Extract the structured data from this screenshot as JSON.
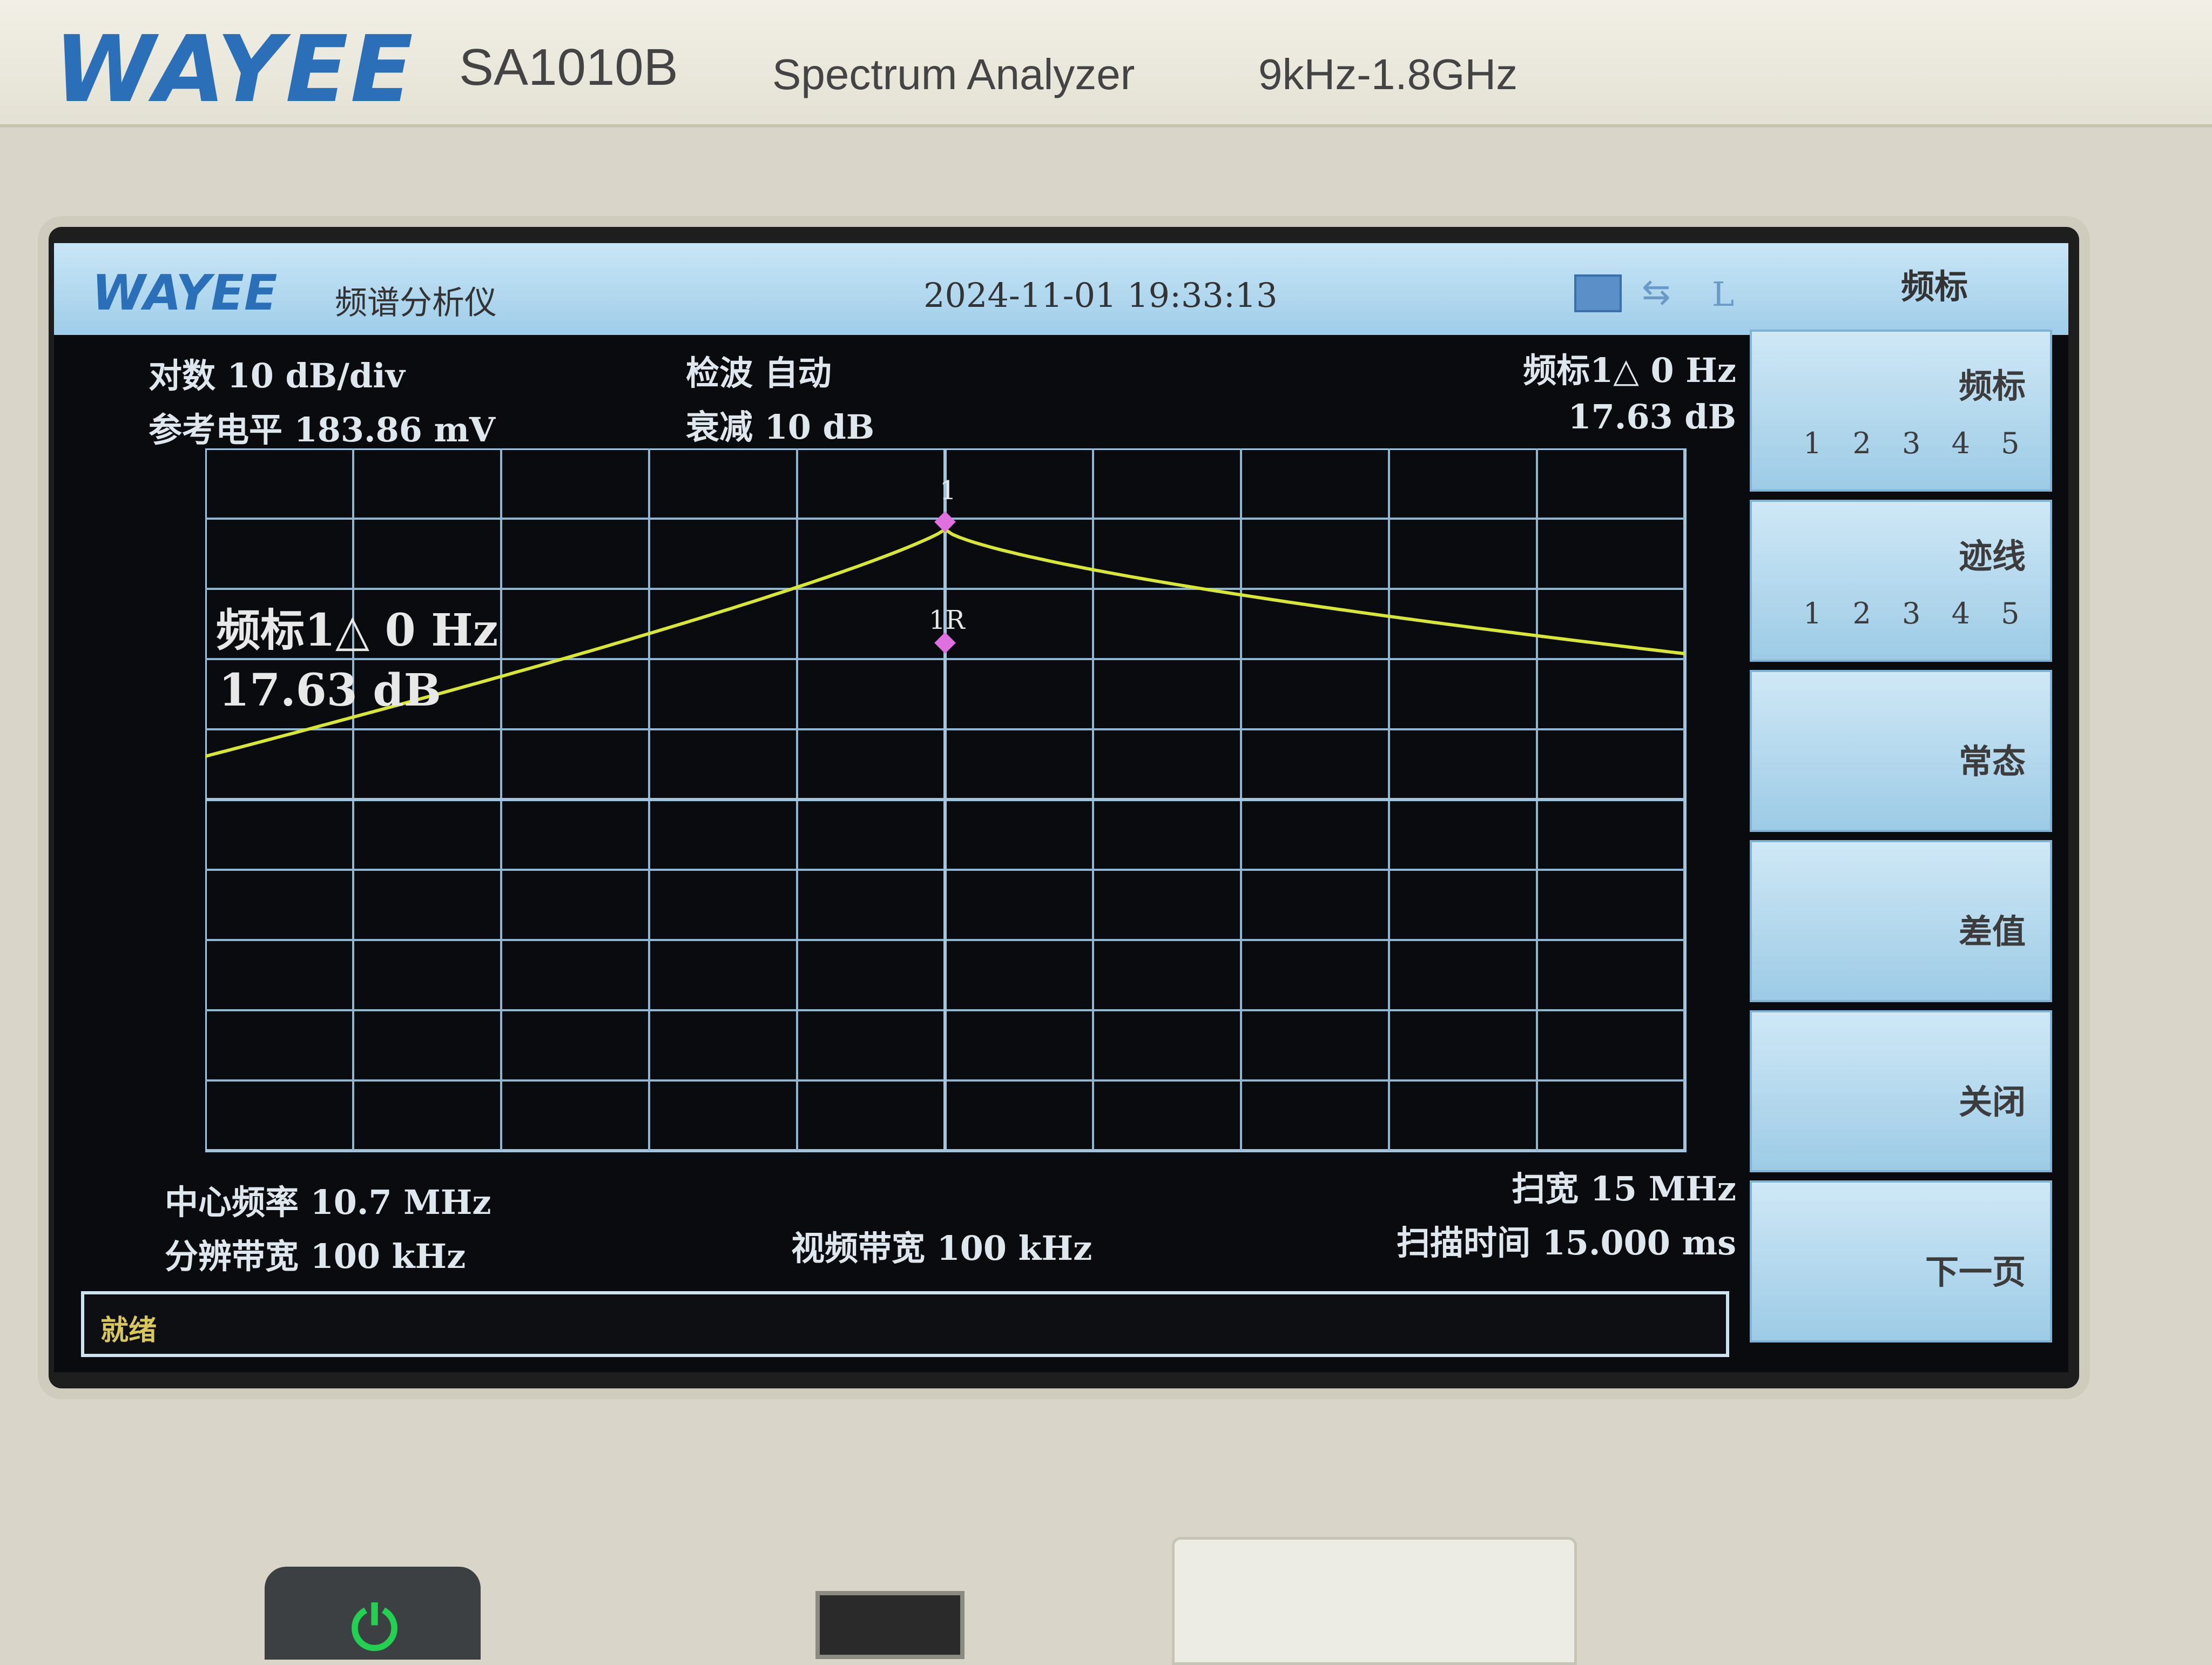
{
  "device": {
    "brand": "WAYEE",
    "model": "SA1010B",
    "product": "Spectrum Analyzer",
    "range": "9kHz-1.8GHz"
  },
  "header": {
    "logo": "WAYEE",
    "app_name": "频谱分析仪",
    "datetime": "2024-11-01  19:33:13",
    "mode_indicator": "L",
    "menu_title": "频标"
  },
  "info": {
    "scale": "对数  10 dB/div",
    "ref_level": "参考电平  183.86 mV",
    "detector": "检波  自动",
    "attenuation": "衰减  10 dB",
    "marker_readout": "频标1△  0 Hz",
    "marker_value": "17.63 dB",
    "center_freq": "中心频率  10.7 MHz",
    "rbw": "分辨带宽  100 kHz",
    "vbw": "视频带宽  100 kHz",
    "span": "扫宽  15 MHz",
    "sweep_time": "扫描时间  15.000 ms"
  },
  "plot": {
    "marker_overlay": "频标1△  0 Hz",
    "marker_overlay_value": "17.63 dB",
    "marker1_label": "1",
    "marker1r_label": "1R",
    "trace_color": "#d8e832",
    "marker_color": "#e070e0"
  },
  "status": "就绪",
  "softkeys": [
    {
      "label": "频标",
      "numbers": "1 2 3 4 5"
    },
    {
      "label": "迹线",
      "numbers": "1 2 3 4 5"
    },
    {
      "label": "常态"
    },
    {
      "label": "差值"
    },
    {
      "label": "关闭"
    },
    {
      "label": "下一页"
    }
  ]
}
